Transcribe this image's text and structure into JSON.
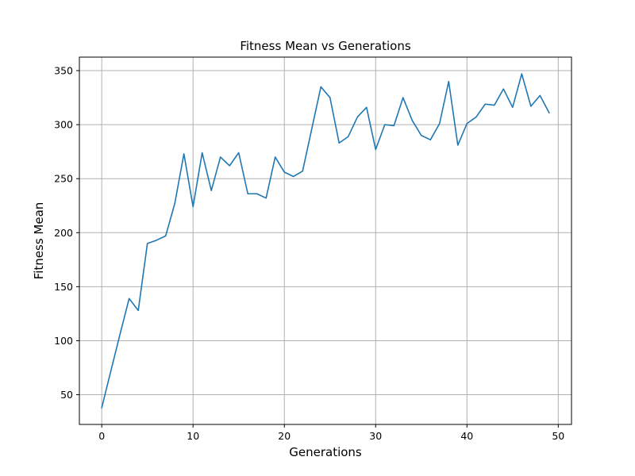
{
  "chart_data": {
    "type": "line",
    "title": "Fitness Mean vs Generations",
    "xlabel": "Generations",
    "ylabel": "Fitness Mean",
    "xlim": [
      -2.45,
      51.45
    ],
    "ylim": [
      22.5,
      362.5
    ],
    "xticks": [
      0,
      10,
      20,
      30,
      40,
      50
    ],
    "yticks": [
      50,
      100,
      150,
      200,
      250,
      300,
      350
    ],
    "grid": true,
    "series": [
      {
        "color": "#1f77b4",
        "x": [
          0,
          1,
          2,
          3,
          4,
          5,
          6,
          7,
          8,
          9,
          10,
          11,
          12,
          13,
          14,
          15,
          16,
          17,
          18,
          19,
          20,
          21,
          22,
          23,
          24,
          25,
          26,
          27,
          28,
          29,
          30,
          31,
          32,
          33,
          34,
          35,
          36,
          37,
          38,
          39,
          40,
          41,
          42,
          43,
          44,
          45,
          46,
          47,
          48,
          49
        ],
        "y": [
          38,
          72,
          106,
          139,
          128,
          190,
          193,
          197,
          227,
          273,
          224,
          274,
          239,
          270,
          262,
          274,
          236,
          236,
          232,
          270,
          256,
          252,
          257,
          296,
          335,
          325,
          283,
          289,
          307,
          316,
          277,
          300,
          299,
          325,
          304,
          290,
          286,
          301,
          340,
          281,
          301,
          307,
          319,
          318,
          333,
          316,
          347,
          317,
          327,
          311
        ]
      }
    ]
  }
}
